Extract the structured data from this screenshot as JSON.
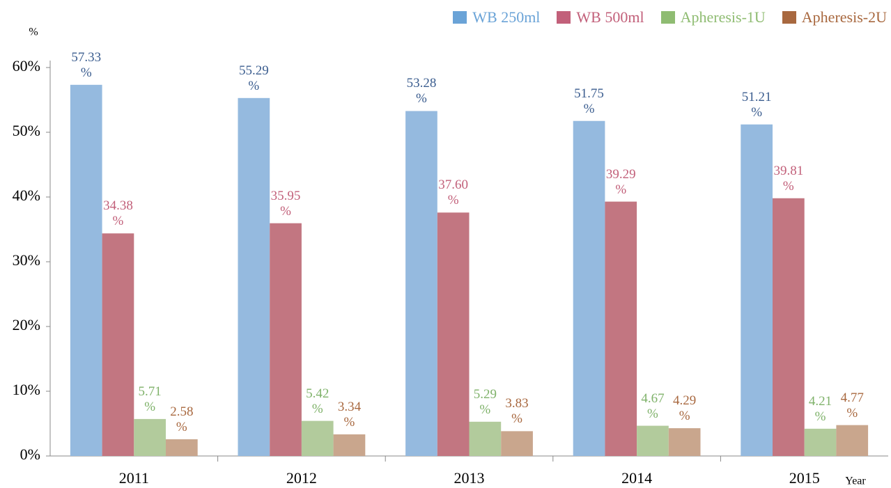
{
  "chart_data": {
    "type": "bar",
    "y_label": "%",
    "x_label": "Year",
    "categories": [
      "2011",
      "2012",
      "2013",
      "2014",
      "2015"
    ],
    "series": [
      {
        "name": "WB 250ml",
        "color": "#95badf",
        "legend_color": "#6aa3d7",
        "label_color": "#3b5d8f",
        "values": [
          57.33,
          55.29,
          53.28,
          51.75,
          51.21
        ],
        "value_labels": [
          "57.33 %",
          "55.29 %",
          "53.28 %",
          "51.75 %",
          "51.21 %"
        ]
      },
      {
        "name": "WB 500ml",
        "color": "#c27681",
        "legend_color": "#c2607a",
        "label_color": "#c2607a",
        "values": [
          34.38,
          35.95,
          37.6,
          39.29,
          39.81
        ],
        "value_labels": [
          "34.38 %",
          "35.95 %",
          "37.60 %",
          "39.29 %",
          "39.81 %"
        ]
      },
      {
        "name": "Apheresis-1U",
        "color": "#b2cb9c",
        "legend_color": "#8fbc72",
        "label_color": "#7fb26a",
        "values": [
          5.71,
          5.42,
          5.29,
          4.67,
          4.21
        ],
        "value_labels": [
          "5.71 %",
          "5.42 %",
          "5.29 %",
          "4.67 %",
          "4.21 %"
        ]
      },
      {
        "name": "Apheresis-2U",
        "color": "#c9a68d",
        "legend_color": "#a8683f",
        "label_color": "#a8683f",
        "values": [
          2.58,
          3.34,
          3.83,
          4.29,
          4.77
        ],
        "value_labels": [
          "2.58 %",
          "3.34 %",
          "3.83 %",
          "4.29 %",
          "4.77 %"
        ]
      }
    ],
    "ylim": [
      0,
      60
    ],
    "yticks": [
      {
        "value": 0,
        "label": "0%"
      },
      {
        "value": 10,
        "label": "10%"
      },
      {
        "value": 20,
        "label": "20%"
      },
      {
        "value": 30,
        "label": "30%"
      },
      {
        "value": 40,
        "label": "40%"
      },
      {
        "value": 50,
        "label": "50%"
      },
      {
        "value": 60,
        "label": "60%"
      }
    ],
    "legend": "top-right"
  }
}
